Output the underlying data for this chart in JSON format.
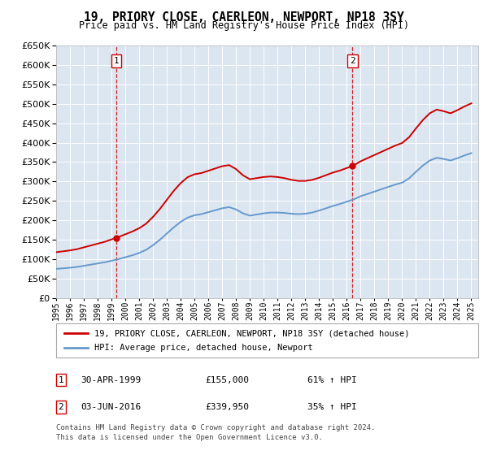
{
  "title": "19, PRIORY CLOSE, CAERLEON, NEWPORT, NP18 3SY",
  "subtitle": "Price paid vs. HM Land Registry's House Price Index (HPI)",
  "legend_line1": "19, PRIORY CLOSE, CAERLEON, NEWPORT, NP18 3SY (detached house)",
  "legend_line2": "HPI: Average price, detached house, Newport",
  "footnote1": "Contains HM Land Registry data © Crown copyright and database right 2024.",
  "footnote2": "This data is licensed under the Open Government Licence v3.0.",
  "purchase1_label": "1",
  "purchase1_date": "30-APR-1999",
  "purchase1_price": "£155,000",
  "purchase1_hpi": "61% ↑ HPI",
  "purchase1_year": 1999.33,
  "purchase1_value": 155000,
  "purchase2_label": "2",
  "purchase2_date": "03-JUN-2016",
  "purchase2_price": "£339,950",
  "purchase2_hpi": "35% ↑ HPI",
  "purchase2_year": 2016.42,
  "purchase2_value": 339950,
  "color_red": "#cc0000",
  "color_blue": "#6699cc",
  "bg_plot": "#dce6f1",
  "bg_fig": "#ffffff",
  "ylim_min": 0,
  "ylim_max": 650000,
  "xlim_min": 1995,
  "xlim_max": 2025.5,
  "hpi_years": [
    1995.0,
    1995.5,
    1996.0,
    1996.5,
    1997.0,
    1997.5,
    1998.0,
    1998.5,
    1999.0,
    1999.5,
    2000.0,
    2000.5,
    2001.0,
    2001.5,
    2002.0,
    2002.5,
    2003.0,
    2003.5,
    2004.0,
    2004.5,
    2005.0,
    2005.5,
    2006.0,
    2006.5,
    2007.0,
    2007.5,
    2008.0,
    2008.5,
    2009.0,
    2009.5,
    2010.0,
    2010.5,
    2011.0,
    2011.5,
    2012.0,
    2012.5,
    2013.0,
    2013.5,
    2014.0,
    2014.5,
    2015.0,
    2015.5,
    2016.0,
    2016.5,
    2017.0,
    2017.5,
    2018.0,
    2018.5,
    2019.0,
    2019.5,
    2020.0,
    2020.5,
    2021.0,
    2021.5,
    2022.0,
    2022.5,
    2023.0,
    2023.5,
    2024.0,
    2024.5,
    2025.0
  ],
  "hpi_values": [
    75000,
    76500,
    78000,
    80000,
    83000,
    86000,
    89000,
    92000,
    96000,
    100000,
    105000,
    110000,
    116000,
    124000,
    136000,
    150000,
    166000,
    182000,
    196000,
    207000,
    213000,
    216000,
    221000,
    226000,
    231000,
    234000,
    228000,
    218000,
    212000,
    215000,
    218000,
    220000,
    220000,
    219000,
    217000,
    216000,
    217000,
    220000,
    225000,
    231000,
    237000,
    242000,
    248000,
    254000,
    262000,
    268000,
    274000,
    280000,
    286000,
    292000,
    297000,
    308000,
    325000,
    341000,
    354000,
    361000,
    358000,
    354000,
    360000,
    367000,
    373000
  ]
}
